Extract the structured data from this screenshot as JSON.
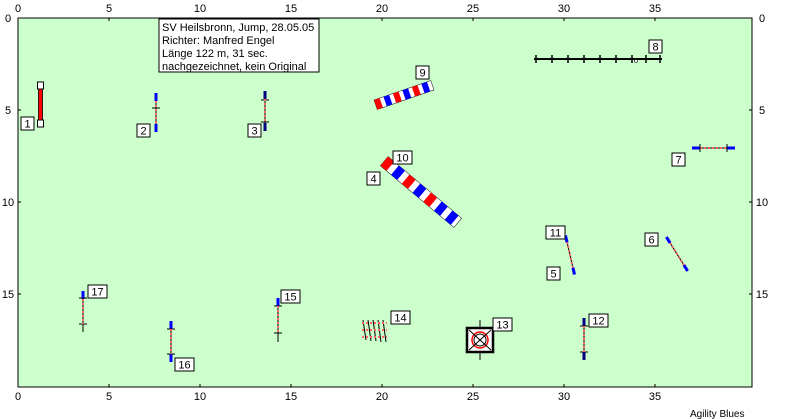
{
  "info": {
    "line1": "SV Heilsbronn, Jump, 28.05.05",
    "line2": "Richter: Manfred Engel",
    "line3": "Länge 122 m, 31 sec.",
    "line4": "nachgezeichnet, kein Original"
  },
  "credit": "Agility Blues",
  "axis": {
    "x_ticks": [
      "0",
      "5",
      "10",
      "15",
      "20",
      "25",
      "30",
      "35"
    ],
    "y_ticks": [
      "0",
      "5",
      "10",
      "15"
    ],
    "x_range": [
      0,
      40
    ],
    "y_range": [
      0,
      20
    ]
  },
  "colors": {
    "field": "#ccffcc",
    "red": "#ff0000",
    "blue": "#0000ff",
    "navy": "#000080",
    "black": "#000000"
  },
  "obstacles": [
    {
      "num": "1",
      "type": "wall-jump",
      "x": 0.5,
      "y": 4.8
    },
    {
      "num": "2",
      "type": "jump",
      "x": 7.5,
      "y": 5.2,
      "angle": 90
    },
    {
      "num": "3",
      "type": "jump",
      "x": 13.5,
      "y": 5.2,
      "angle": 90
    },
    {
      "num": "4",
      "type": "tunnel-label",
      "x": 19.8,
      "y": 8.5
    },
    {
      "num": "5",
      "type": "jump",
      "x": 30.0,
      "y": 13.0,
      "angle": 80
    },
    {
      "num": "6",
      "type": "jump",
      "x": 35.8,
      "y": 12.8,
      "angle": 55
    },
    {
      "num": "7",
      "type": "jump",
      "x": 37.5,
      "y": 7.0,
      "angle": 0
    },
    {
      "num": "8",
      "type": "weave",
      "x": 31.5,
      "y": 2.3
    },
    {
      "num": "9",
      "type": "tube",
      "x": 20.5,
      "y": 3.8
    },
    {
      "num": "10",
      "type": "tunnel",
      "x": 22.0,
      "y": 10.0
    },
    {
      "num": "11",
      "type": "jump-label",
      "x": 30.0,
      "y": 12.0
    },
    {
      "num": "12",
      "type": "jump",
      "x": 30.8,
      "y": 17.5,
      "angle": 90
    },
    {
      "num": "13",
      "type": "tire",
      "x": 25.2,
      "y": 17.5
    },
    {
      "num": "14",
      "type": "long-jump",
      "x": 19.5,
      "y": 17.0
    },
    {
      "num": "15",
      "type": "jump",
      "x": 14.0,
      "y": 16.4,
      "angle": 90
    },
    {
      "num": "16",
      "type": "jump",
      "x": 7.7,
      "y": 17.6,
      "angle": 90
    },
    {
      "num": "17",
      "type": "jump",
      "x": 3.6,
      "y": 15.8,
      "angle": 90
    }
  ]
}
